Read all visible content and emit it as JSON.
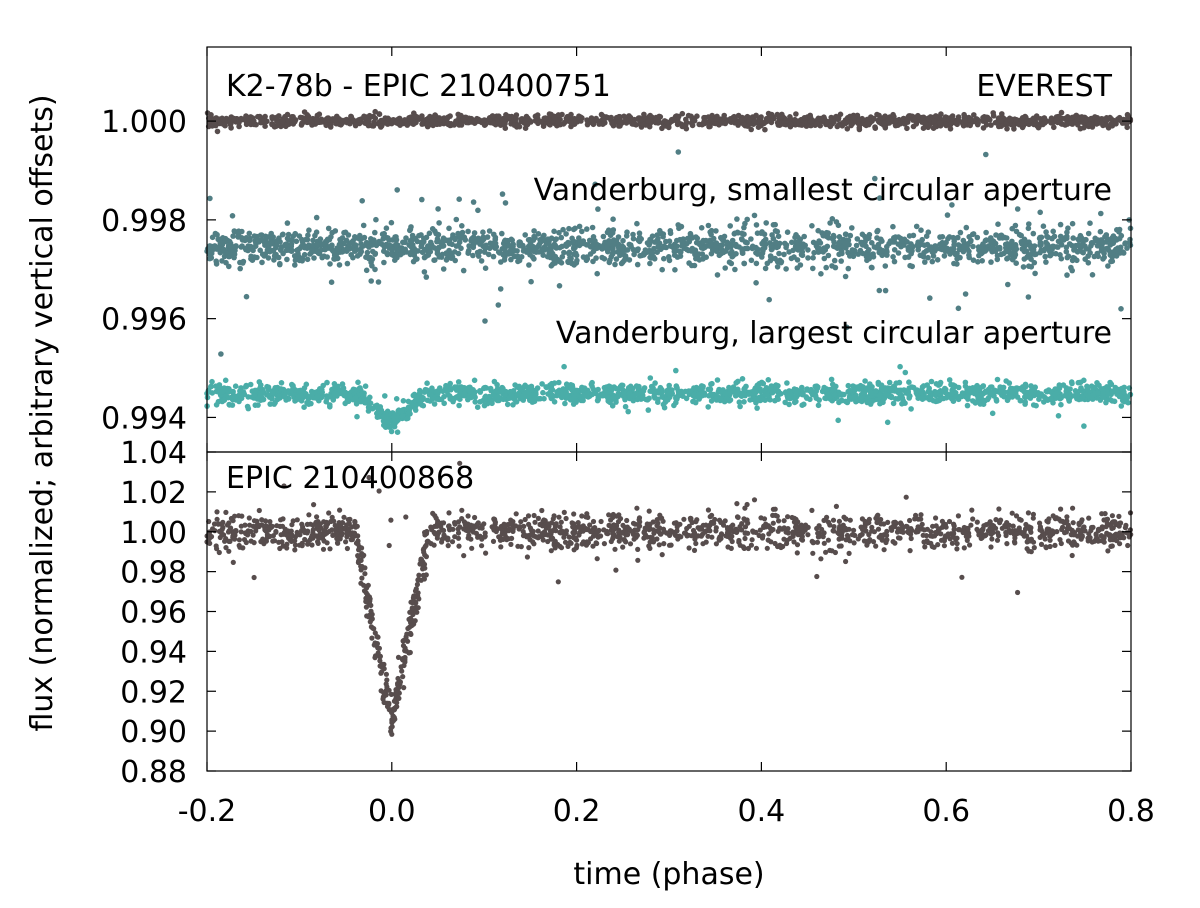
{
  "chart_data": {
    "type": "scatter",
    "xlabel": "time (phase)",
    "ylabel": "flux (normalized; arbitrary vertical offsets)",
    "xlim": [
      -0.2,
      0.8
    ],
    "x_ticks": [
      "-0.2",
      "0.0",
      "0.2",
      "0.4",
      "0.6",
      "0.8"
    ],
    "grid": false,
    "panels": [
      {
        "name": "top",
        "label_left": "K2-78b - EPIC 210400751",
        "label_right": "EVEREST",
        "ylim": [
          0.9933,
          1.0015
        ],
        "y_ticks": [
          "1.000",
          "0.998",
          "0.996",
          "0.994"
        ],
        "y_tick_values": [
          1.0,
          0.998,
          0.996,
          0.994
        ],
        "series": [
          {
            "name": "EVEREST",
            "label": "",
            "color": "#574d4d",
            "baseline": 1.0,
            "noise": 6e-05,
            "transit_depth": 0.0,
            "n": 1400,
            "outliers": 0
          },
          {
            "name": "smallest",
            "label": "Vanderburg, smallest circular aperture",
            "color": "#517e84",
            "baseline": 0.99745,
            "noise": 0.00018,
            "transit_depth": 0.0,
            "n": 1700,
            "outliers": 120
          },
          {
            "name": "largest",
            "label": "Vanderburg, largest circular aperture",
            "color": "#4aada8",
            "baseline": 0.99448,
            "noise": 0.0001,
            "transit_depth": 0.0006,
            "n": 1700,
            "outliers": 40
          }
        ]
      },
      {
        "name": "bottom",
        "label_left": "EPIC 210400868",
        "ylim": [
          0.88,
          1.04
        ],
        "y_ticks": [
          "1.04",
          "1.02",
          "1.00",
          "0.98",
          "0.96",
          "0.94",
          "0.92",
          "0.90",
          "0.88"
        ],
        "y_tick_values": [
          1.04,
          1.02,
          1.0,
          0.98,
          0.96,
          0.94,
          0.92,
          0.9,
          0.88
        ],
        "series": [
          {
            "name": "EPIC 210400868",
            "color": "#574d4d",
            "baseline": 1.0,
            "noise": 0.0045,
            "transit_depth": 0.095,
            "n": 1500,
            "outliers": 30
          }
        ]
      }
    ]
  }
}
